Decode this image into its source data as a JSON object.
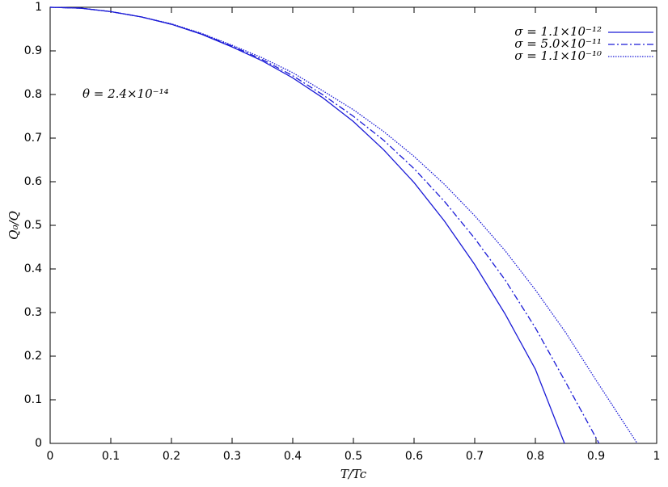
{
  "chart_data": {
    "type": "line",
    "xlabel": "T/Tc",
    "ylabel": "Q₀/Q",
    "annotation": "θ = 2.4×10⁻¹⁴",
    "xlim": [
      0,
      1
    ],
    "ylim": [
      0,
      1
    ],
    "xticks": [
      0,
      0.1,
      0.2,
      0.3,
      0.4,
      0.5,
      0.6,
      0.7,
      0.8,
      0.9,
      1
    ],
    "yticks": [
      0,
      0.1,
      0.2,
      0.3,
      0.4,
      0.5,
      0.6,
      0.7,
      0.8,
      0.9,
      1
    ],
    "legend": "upper right",
    "series": [
      {
        "name": "σ = 1.1×10⁻¹²",
        "color": "#1a1ad6",
        "dash": "solid",
        "x": [
          0,
          0.05,
          0.1,
          0.15,
          0.2,
          0.25,
          0.3,
          0.35,
          0.4,
          0.45,
          0.5,
          0.55,
          0.6,
          0.65,
          0.7,
          0.75,
          0.8,
          0.848
        ],
        "values": [
          1,
          0.998,
          0.99,
          0.978,
          0.961,
          0.938,
          0.909,
          0.877,
          0.838,
          0.792,
          0.738,
          0.673,
          0.598,
          0.51,
          0.41,
          0.297,
          0.17,
          0
        ]
      },
      {
        "name": "σ = 5.0×10⁻¹¹",
        "color": "#1a1ad6",
        "dash": "dash-dot",
        "x": [
          0,
          0.05,
          0.1,
          0.15,
          0.2,
          0.25,
          0.3,
          0.35,
          0.4,
          0.45,
          0.5,
          0.55,
          0.6,
          0.65,
          0.7,
          0.75,
          0.8,
          0.85,
          0.905
        ],
        "values": [
          1,
          0.998,
          0.99,
          0.978,
          0.961,
          0.939,
          0.911,
          0.88,
          0.843,
          0.799,
          0.75,
          0.695,
          0.63,
          0.555,
          0.47,
          0.375,
          0.265,
          0.14,
          0
        ]
      },
      {
        "name": "σ = 1.1×10⁻¹⁰",
        "color": "#1a1ad6",
        "dash": "dotted",
        "x": [
          0,
          0.05,
          0.1,
          0.15,
          0.2,
          0.25,
          0.3,
          0.35,
          0.4,
          0.45,
          0.5,
          0.55,
          0.6,
          0.65,
          0.7,
          0.75,
          0.8,
          0.85,
          0.9,
          0.968
        ],
        "values": [
          1,
          0.998,
          0.99,
          0.978,
          0.962,
          0.94,
          0.913,
          0.884,
          0.85,
          0.808,
          0.765,
          0.715,
          0.658,
          0.594,
          0.522,
          0.442,
          0.352,
          0.254,
          0.145,
          0
        ]
      }
    ]
  }
}
